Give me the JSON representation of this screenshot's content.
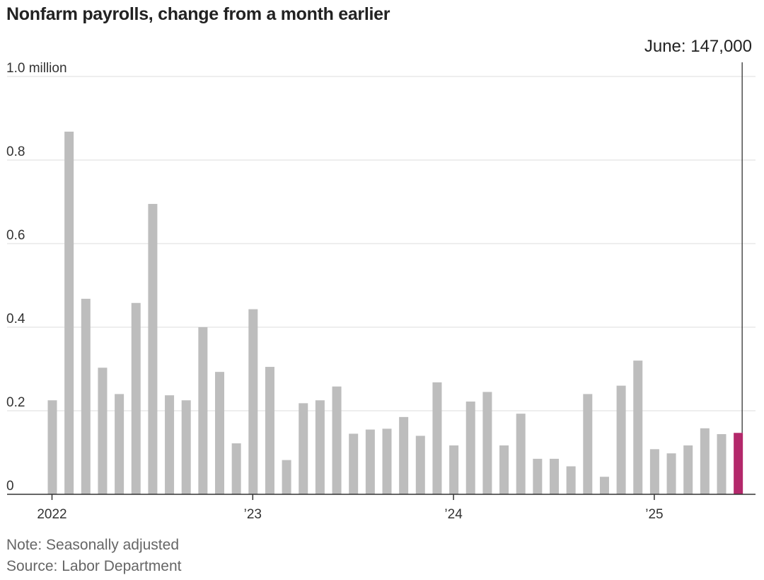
{
  "chart_data": {
    "type": "bar",
    "title": "Nonfarm payrolls, change from a month earlier",
    "y_unit_label": "1.0 million",
    "ylim": [
      0,
      1.0
    ],
    "y_ticks": [
      {
        "value": 0,
        "label": "0"
      },
      {
        "value": 0.2,
        "label": "0.2"
      },
      {
        "value": 0.4,
        "label": "0.4"
      },
      {
        "value": 0.6,
        "label": "0.6"
      },
      {
        "value": 0.8,
        "label": "0.8"
      },
      {
        "value": 1.0,
        "label": "1.0 million"
      }
    ],
    "x_ticks": [
      {
        "category": "2022-01",
        "label": "2022"
      },
      {
        "category": "2023-01",
        "label": "’23"
      },
      {
        "category": "2024-01",
        "label": "’24"
      },
      {
        "category": "2025-01",
        "label": "’25"
      }
    ],
    "grid": "horizontal",
    "categories": [
      "2022-01",
      "2022-02",
      "2022-03",
      "2022-04",
      "2022-05",
      "2022-06",
      "2022-07",
      "2022-08",
      "2022-09",
      "2022-10",
      "2022-11",
      "2022-12",
      "2023-01",
      "2023-02",
      "2023-03",
      "2023-04",
      "2023-05",
      "2023-06",
      "2023-07",
      "2023-08",
      "2023-09",
      "2023-10",
      "2023-11",
      "2023-12",
      "2024-01",
      "2024-02",
      "2024-03",
      "2024-04",
      "2024-05",
      "2024-06",
      "2024-07",
      "2024-08",
      "2024-09",
      "2024-10",
      "2024-11",
      "2024-12",
      "2025-01",
      "2025-02",
      "2025-03",
      "2025-04",
      "2025-05",
      "2025-06"
    ],
    "values": [
      0.225,
      0.868,
      0.468,
      0.303,
      0.24,
      0.458,
      0.695,
      0.237,
      0.225,
      0.4,
      0.293,
      0.122,
      0.443,
      0.305,
      0.082,
      0.218,
      0.225,
      0.258,
      0.145,
      0.155,
      0.157,
      0.185,
      0.14,
      0.268,
      0.117,
      0.222,
      0.245,
      0.117,
      0.193,
      0.085,
      0.085,
      0.067,
      0.24,
      0.042,
      0.26,
      0.32,
      0.108,
      0.098,
      0.117,
      0.158,
      0.144,
      0.147
    ],
    "highlight_index": 41,
    "colors": {
      "bar": "#bdbdbd",
      "highlight": "#b3286b",
      "grid": "#dddddd",
      "axis": "#333333",
      "annotation_line": "#333333"
    },
    "annotation": {
      "text": "June: 147,000",
      "category": "2025-06",
      "value": 0.147
    },
    "notes": [
      "Note: Seasonally adjusted",
      "Source: Labor Department"
    ]
  }
}
